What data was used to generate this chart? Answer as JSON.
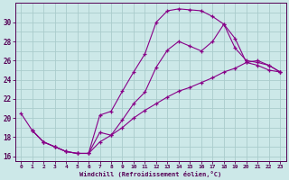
{
  "xlabel": "Windchill (Refroidissement éolien,°C)",
  "bg_color": "#cce8e8",
  "grid_color": "#aacccc",
  "line_color": "#880088",
  "xlim": [
    -0.5,
    23.5
  ],
  "ylim": [
    15.5,
    32
  ],
  "xticks": [
    0,
    1,
    2,
    3,
    4,
    5,
    6,
    7,
    8,
    9,
    10,
    11,
    12,
    13,
    14,
    15,
    16,
    17,
    18,
    19,
    20,
    21,
    22,
    23
  ],
  "yticks": [
    16,
    18,
    20,
    22,
    24,
    26,
    28,
    30
  ],
  "curve1_x": [
    0,
    1,
    2,
    3,
    4,
    5,
    6,
    7,
    8,
    9,
    10,
    11,
    12,
    13,
    14,
    15,
    16,
    17,
    18,
    19,
    20,
    21,
    22,
    23
  ],
  "curve1_y": [
    20.5,
    18.7,
    17.5,
    17.0,
    16.5,
    16.3,
    16.3,
    20.3,
    20.7,
    22.8,
    24.8,
    26.7,
    30.0,
    31.2,
    31.4,
    31.3,
    31.2,
    30.6,
    29.8,
    28.3,
    25.8,
    25.5,
    25.0,
    24.8
  ],
  "curve2_x": [
    1,
    2,
    3,
    4,
    5,
    6,
    7,
    8,
    9,
    10,
    11,
    12,
    13,
    14,
    15,
    16,
    17,
    18,
    19,
    20,
    21,
    22,
    23
  ],
  "curve2_y": [
    18.7,
    17.5,
    17.0,
    16.5,
    16.3,
    16.3,
    18.5,
    18.2,
    19.8,
    21.5,
    22.7,
    25.3,
    27.1,
    28.0,
    27.5,
    27.0,
    28.0,
    29.8,
    27.3,
    26.0,
    25.8,
    25.5,
    24.8
  ],
  "curve3_x": [
    1,
    2,
    3,
    4,
    5,
    6,
    7,
    8,
    9,
    10,
    11,
    12,
    13,
    14,
    15,
    16,
    17,
    18,
    19,
    20,
    21,
    22,
    23
  ],
  "curve3_y": [
    18.7,
    17.5,
    17.0,
    16.5,
    16.3,
    16.3,
    17.5,
    18.2,
    19.0,
    20.0,
    20.8,
    21.5,
    22.2,
    22.8,
    23.2,
    23.7,
    24.2,
    24.8,
    25.2,
    25.8,
    26.0,
    25.5,
    24.8
  ]
}
